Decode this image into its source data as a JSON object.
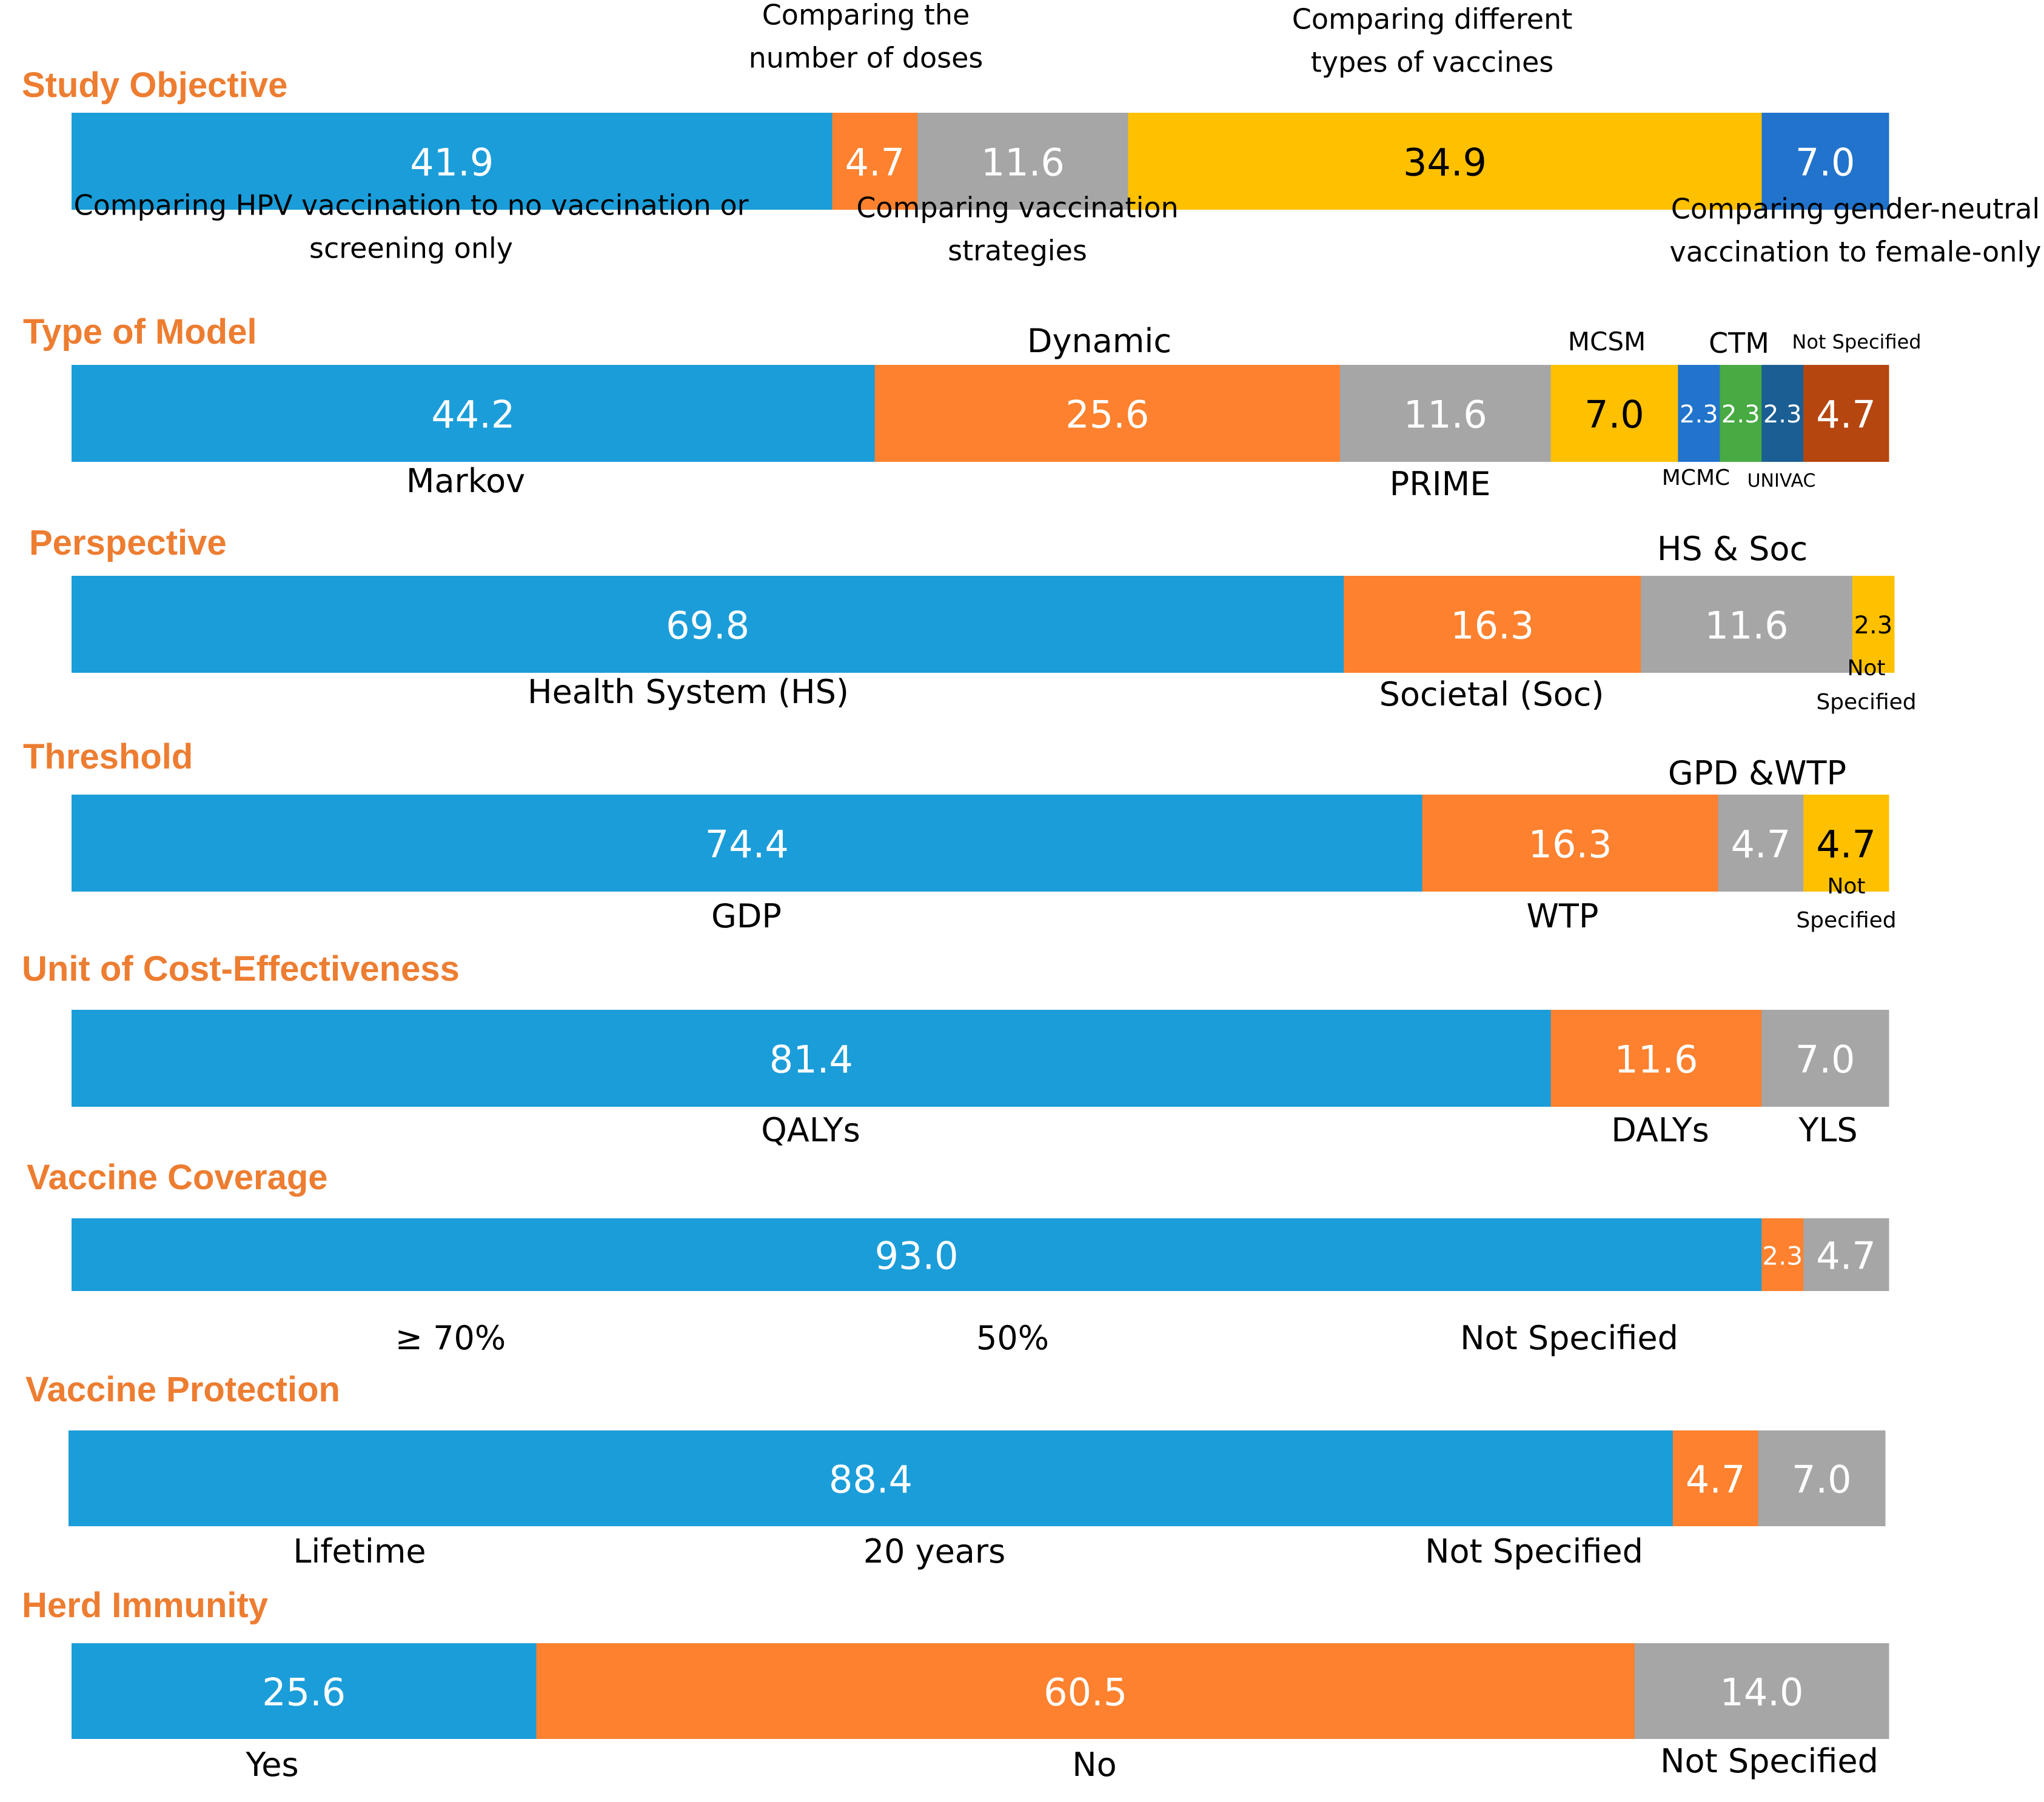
{
  "chart_data": {
    "type": "bar",
    "stacked": true,
    "orientation": "horizontal",
    "unit": "percent",
    "rows": [
      {
        "title": "Study Objective",
        "segments": [
          {
            "label": "Comparing HPV vaccination to no vaccination or screening only",
            "value": 41.9,
            "color": "#1B9DD9",
            "text_color": "#FFFFFF"
          },
          {
            "label": "Comparing the number of doses",
            "value": 4.7,
            "color": "#FD812E",
            "text_color": "#FFFFFF"
          },
          {
            "label": "Comparing vaccination strategies",
            "value": 11.6,
            "color": "#A6A6A6",
            "text_color": "#FFFFFF"
          },
          {
            "label": "Comparing different types of vaccines",
            "value": 34.9,
            "color": "#FFC000",
            "text_color": "#000000"
          },
          {
            "label": "Comparing gender-neutral vaccination to female-only",
            "value": 7.0,
            "color": "#2173CC",
            "text_color": "#FFFFFF"
          }
        ]
      },
      {
        "title": "Type of Model",
        "segments": [
          {
            "label": "Markov",
            "value": 44.2,
            "color": "#1B9DD9",
            "text_color": "#FFFFFF"
          },
          {
            "label": "Dynamic",
            "value": 25.6,
            "color": "#FD812E",
            "text_color": "#FFFFFF"
          },
          {
            "label": "PRIME",
            "value": 11.6,
            "color": "#A6A6A6",
            "text_color": "#FFFFFF"
          },
          {
            "label": "MCSM",
            "value": 7.0,
            "color": "#FFC000",
            "text_color": "#000000"
          },
          {
            "label": "MCMC",
            "value": 2.3,
            "color": "#2173CC",
            "text_color": "#FFFFFF"
          },
          {
            "label": "CTM",
            "value": 2.3,
            "color": "#47AA42",
            "text_color": "#FFFFFF"
          },
          {
            "label": "UNIVAC",
            "value": 2.3,
            "color": "#1A5E93",
            "text_color": "#FFFFFF"
          },
          {
            "label": "Not Specified",
            "value": 4.7,
            "color": "#B5460F",
            "text_color": "#FFFFFF"
          }
        ]
      },
      {
        "title": "Perspective",
        "segments": [
          {
            "label": "Health System (HS)",
            "value": 69.8,
            "color": "#1B9DD9",
            "text_color": "#FFFFFF"
          },
          {
            "label": "Societal (Soc)",
            "value": 16.3,
            "color": "#FD812E",
            "text_color": "#FFFFFF"
          },
          {
            "label": "HS & Soc",
            "value": 11.6,
            "color": "#A6A6A6",
            "text_color": "#FFFFFF"
          },
          {
            "label": "Not Specified",
            "value": 2.3,
            "color": "#FFC000",
            "text_color": "#000000"
          }
        ]
      },
      {
        "title": "Threshold",
        "segments": [
          {
            "label": "GDP",
            "value": 74.4,
            "color": "#1B9DD9",
            "text_color": "#FFFFFF"
          },
          {
            "label": "WTP",
            "value": 16.3,
            "color": "#FD812E",
            "text_color": "#FFFFFF"
          },
          {
            "label": "GPD &WTP",
            "value": 4.7,
            "color": "#A6A6A6",
            "text_color": "#FFFFFF"
          },
          {
            "label": "Not Specified",
            "value": 4.7,
            "color": "#FFC000",
            "text_color": "#000000"
          }
        ]
      },
      {
        "title": "Unit of Cost-Effectiveness",
        "segments": [
          {
            "label": "QALYs",
            "value": 81.4,
            "color": "#1B9DD9",
            "text_color": "#FFFFFF"
          },
          {
            "label": "DALYs",
            "value": 11.6,
            "color": "#FD812E",
            "text_color": "#FFFFFF"
          },
          {
            "label": "YLS",
            "value": 7.0,
            "color": "#A6A6A6",
            "text_color": "#FFFFFF"
          }
        ]
      },
      {
        "title": "Vaccine Coverage",
        "segments": [
          {
            "label": "≥ 70%",
            "value": 93.0,
            "color": "#1B9DD9",
            "text_color": "#FFFFFF"
          },
          {
            "label": "50%",
            "value": 2.3,
            "color": "#FD812E",
            "text_color": "#FFFFFF"
          },
          {
            "label": "Not Specified",
            "value": 4.7,
            "color": "#A6A6A6",
            "text_color": "#FFFFFF"
          }
        ]
      },
      {
        "title": "Vaccine Protection",
        "segments": [
          {
            "label": "Lifetime",
            "value": 88.4,
            "color": "#1B9DD9",
            "text_color": "#FFFFFF"
          },
          {
            "label": "20 years",
            "value": 4.7,
            "color": "#FD812E",
            "text_color": "#FFFFFF"
          },
          {
            "label": "Not Specified",
            "value": 7.0,
            "color": "#A6A6A6",
            "text_color": "#FFFFFF"
          }
        ]
      },
      {
        "title": "Herd Immunity",
        "segments": [
          {
            "label": "Yes",
            "value": 25.6,
            "color": "#1B9DD9",
            "text_color": "#FFFFFF"
          },
          {
            "label": "No",
            "value": 60.5,
            "color": "#FD812E",
            "text_color": "#FFFFFF"
          },
          {
            "label": "Not Specified",
            "value": 14.0,
            "color": "#A6A6A6",
            "text_color": "#FFFFFF"
          }
        ]
      }
    ]
  }
}
